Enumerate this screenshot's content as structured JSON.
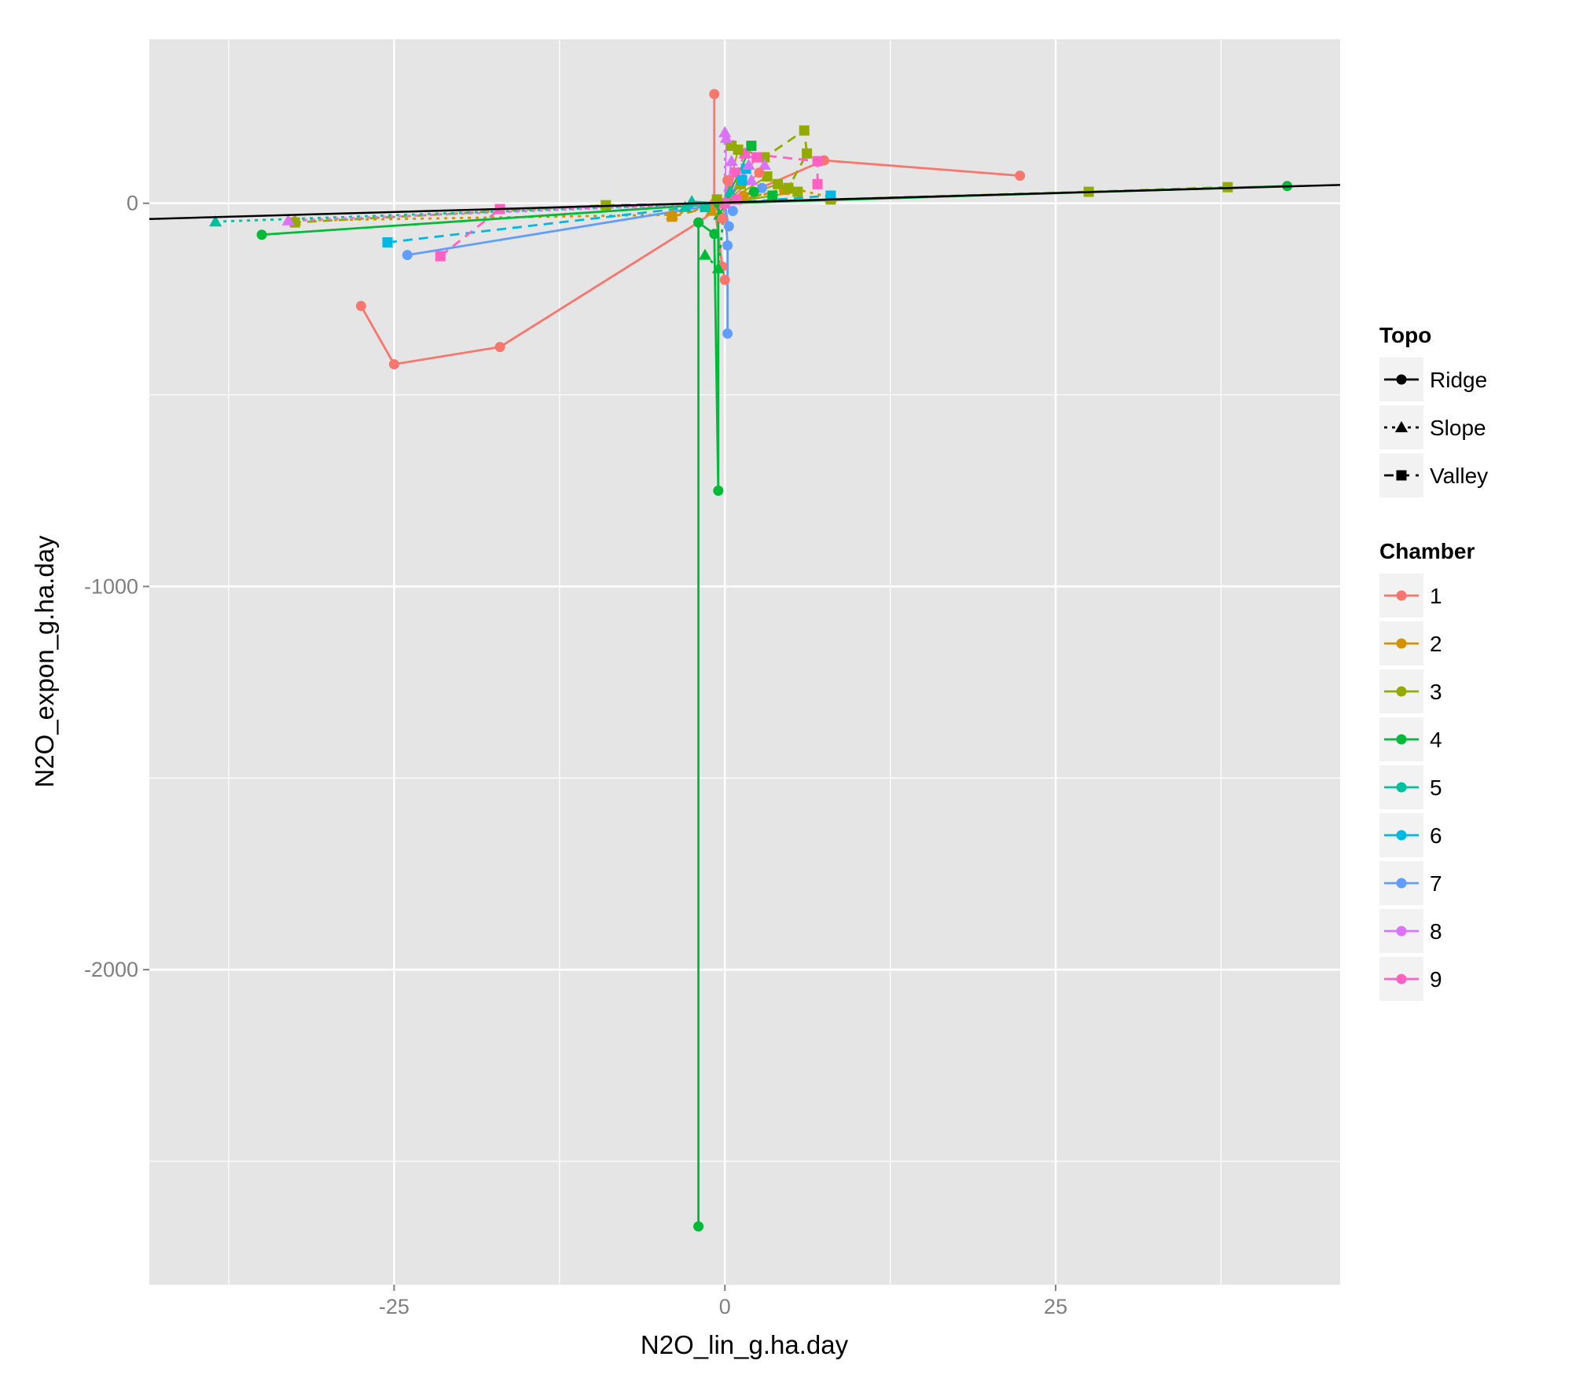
{
  "chart_data": {
    "type": "line",
    "title": "",
    "xlabel": "N2O_lin_g.ha.day",
    "ylabel": "N2O_expon_g.ha.day",
    "xlim": [
      -43.5,
      46.5
    ],
    "ylim": [
      -2822,
      428
    ],
    "x_ticks": [
      -25,
      0,
      25
    ],
    "x_tick_labels": [
      "-25",
      "0",
      "25"
    ],
    "y_ticks": [
      -2000,
      -1000,
      0
    ],
    "y_tick_labels": [
      "-2000",
      "-1000",
      "0"
    ],
    "grid": true,
    "panel_background": "#E5E5E5",
    "legend_position": "right",
    "legend_topo": {
      "title": "Topo",
      "items": [
        {
          "label": "Ridge",
          "shape": "circle",
          "dash": "solid"
        },
        {
          "label": "Slope",
          "shape": "triangle",
          "dash": "dotted"
        },
        {
          "label": "Valley",
          "shape": "square",
          "dash": "dashed"
        }
      ]
    },
    "legend_chamber": {
      "title": "Chamber",
      "items": [
        {
          "label": "1",
          "color": "#F8766D"
        },
        {
          "label": "2",
          "color": "#D39200"
        },
        {
          "label": "3",
          "color": "#93AA00"
        },
        {
          "label": "4",
          "color": "#00BA38"
        },
        {
          "label": "5",
          "color": "#00C19F"
        },
        {
          "label": "6",
          "color": "#00B9E3"
        },
        {
          "label": "7",
          "color": "#619CFF"
        },
        {
          "label": "8",
          "color": "#DB72FB"
        },
        {
          "label": "9",
          "color": "#FF61C3"
        }
      ]
    },
    "reference_line": {
      "x1": -43.5,
      "y1": -41,
      "x2": 46.5,
      "y2": 48
    },
    "series": [
      {
        "chamber": "1",
        "topo": "Ridge",
        "color": "#F8766D",
        "shape": "circle",
        "dash": "solid",
        "points": [
          [
            22.3,
            72
          ],
          [
            7.5,
            112
          ],
          [
            0,
            0
          ],
          [
            -2,
            -50
          ],
          [
            -17,
            -375
          ],
          [
            -25,
            -420
          ],
          [
            -27.5,
            -268
          ]
        ]
      },
      {
        "chamber": "1",
        "topo": "Ridge",
        "color": "#F8766D",
        "shape": "circle",
        "dash": "solid",
        "points": [
          [
            -0.8,
            285
          ],
          [
            -0.8,
            0
          ],
          [
            -0.2,
            -165
          ],
          [
            0,
            -200
          ]
        ]
      },
      {
        "chamber": "2",
        "topo": "Slope",
        "color": "#D39200",
        "shape": "triangle",
        "dash": "dotted",
        "points": [
          [
            -32.5,
            -45
          ],
          [
            -4,
            -30
          ],
          [
            0,
            0
          ],
          [
            5,
            40
          ],
          [
            8,
            15
          ]
        ]
      },
      {
        "chamber": "2",
        "topo": "Valley",
        "color": "#D39200",
        "shape": "square",
        "dash": "dashed",
        "points": [
          [
            -4,
            -35
          ],
          [
            0,
            0
          ],
          [
            4.5,
            35
          ]
        ]
      },
      {
        "chamber": "3",
        "topo": "Valley",
        "color": "#93AA00",
        "shape": "square",
        "dash": "dashed",
        "points": [
          [
            38,
            42
          ],
          [
            27.5,
            30
          ],
          [
            8,
            10
          ],
          [
            0,
            0
          ],
          [
            -9,
            -5
          ],
          [
            -32.5,
            -50
          ]
        ]
      },
      {
        "chamber": "3",
        "topo": "Valley",
        "color": "#93AA00",
        "shape": "square",
        "dash": "dashed",
        "points": [
          [
            0.5,
            150
          ],
          [
            3,
            120
          ],
          [
            6,
            190
          ],
          [
            6.2,
            130
          ],
          [
            4.8,
            40
          ],
          [
            0,
            0
          ]
        ]
      },
      {
        "chamber": "4",
        "topo": "Ridge",
        "color": "#00BA38",
        "shape": "circle",
        "dash": "solid",
        "points": [
          [
            42.5,
            45
          ],
          [
            0,
            0
          ],
          [
            -35,
            -82
          ]
        ]
      },
      {
        "chamber": "4",
        "topo": "Ridge",
        "color": "#00BA38",
        "shape": "circle",
        "dash": "solid",
        "points": [
          [
            -2,
            -2670
          ],
          [
            -2,
            -50
          ],
          [
            -0.8,
            -80
          ],
          [
            -0.5,
            -750
          ],
          [
            -0.5,
            0
          ]
        ]
      },
      {
        "chamber": "4",
        "topo": "Slope",
        "color": "#00BA38",
        "shape": "triangle",
        "dash": "dotted",
        "points": [
          [
            -1.5,
            -135
          ],
          [
            -0.5,
            -170
          ],
          [
            0,
            0
          ]
        ]
      },
      {
        "chamber": "5",
        "topo": "Slope",
        "color": "#00C19F",
        "shape": "triangle",
        "dash": "dotted",
        "points": [
          [
            -38.5,
            -48
          ],
          [
            0,
            0
          ],
          [
            -3,
            -10
          ]
        ]
      },
      {
        "chamber": "6",
        "topo": "Valley",
        "color": "#00B9E3",
        "shape": "square",
        "dash": "dashed",
        "points": [
          [
            -25.5,
            -102
          ],
          [
            0,
            0
          ],
          [
            8,
            20
          ]
        ]
      },
      {
        "chamber": "7",
        "topo": "Ridge",
        "color": "#619CFF",
        "shape": "circle",
        "dash": "solid",
        "points": [
          [
            -24,
            -135
          ],
          [
            0,
            0
          ],
          [
            0.2,
            -110
          ],
          [
            0.2,
            -340
          ]
        ]
      },
      {
        "chamber": "8",
        "topo": "Slope",
        "color": "#DB72FB",
        "shape": "triangle",
        "dash": "dotted",
        "points": [
          [
            -33,
            -45
          ],
          [
            0,
            0
          ],
          [
            0,
            185
          ],
          [
            1.5,
            130
          ],
          [
            3,
            100
          ]
        ]
      },
      {
        "chamber": "9",
        "topo": "Valley",
        "color": "#FF61C3",
        "shape": "square",
        "dash": "dashed",
        "points": [
          [
            -21.5,
            -138
          ],
          [
            -17,
            -15
          ],
          [
            0,
            0
          ],
          [
            1.5,
            130
          ],
          [
            7,
            110
          ],
          [
            7,
            50
          ]
        ]
      }
    ],
    "cluster_points": [
      [
        0.2,
        60,
        "#F8766D",
        "circle"
      ],
      [
        0.5,
        110,
        "#DB72FB",
        "triangle"
      ],
      [
        0.8,
        80,
        "#FF61C3",
        "square"
      ],
      [
        1.2,
        50,
        "#93AA00",
        "square"
      ],
      [
        1.6,
        90,
        "#00B9E3",
        "square"
      ],
      [
        2.0,
        60,
        "#DB72FB",
        "triangle"
      ],
      [
        2.4,
        120,
        "#FF61C3",
        "square"
      ],
      [
        2.8,
        40,
        "#619CFF",
        "circle"
      ],
      [
        3.2,
        70,
        "#93AA00",
        "square"
      ],
      [
        0.4,
        30,
        "#00C19F",
        "triangle"
      ],
      [
        1.0,
        140,
        "#93AA00",
        "square"
      ],
      [
        1.4,
        20,
        "#D39200",
        "circle"
      ],
      [
        1.8,
        100,
        "#DB72FB",
        "triangle"
      ],
      [
        2.2,
        30,
        "#00BA38",
        "circle"
      ],
      [
        0.6,
        -20,
        "#619CFF",
        "circle"
      ],
      [
        -0.4,
        -30,
        "#00BA38",
        "triangle"
      ],
      [
        -1.0,
        -20,
        "#D39200",
        "triangle"
      ],
      [
        -1.5,
        -10,
        "#00C19F",
        "square"
      ],
      [
        0.3,
        -60,
        "#619CFF",
        "circle"
      ],
      [
        -0.2,
        -40,
        "#F8766D",
        "circle"
      ],
      [
        3.6,
        20,
        "#00BA38",
        "square"
      ],
      [
        4.0,
        50,
        "#93AA00",
        "square"
      ],
      [
        0.9,
        10,
        "#FF61C3",
        "square"
      ],
      [
        1.3,
        60,
        "#00B9E3",
        "square"
      ],
      [
        2.6,
        80,
        "#F8766D",
        "circle"
      ],
      [
        -0.6,
        10,
        "#93AA00",
        "square"
      ],
      [
        -2.5,
        5,
        "#00C19F",
        "triangle"
      ],
      [
        0.1,
        170,
        "#DB72FB",
        "triangle"
      ],
      [
        2.0,
        150,
        "#00BA38",
        "square"
      ],
      [
        5.5,
        30,
        "#93AA00",
        "square"
      ]
    ]
  }
}
